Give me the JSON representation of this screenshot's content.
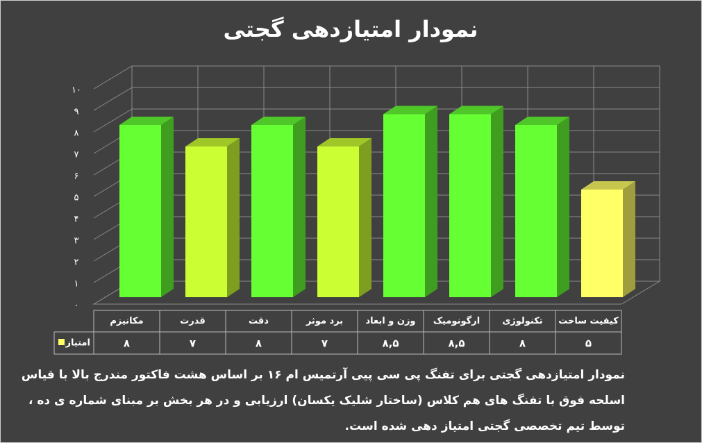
{
  "chart_data": {
    "type": "bar3d",
    "title": "نمودار امتیازدهی گجتی",
    "categories": [
      "مکانیزم",
      "قدرت",
      "دقت",
      "برد موثر",
      "وزن و ابعاد",
      "ارگونومیک",
      "تکنولوژی",
      "کیفیت ساخت"
    ],
    "series": [
      {
        "name": "امتیاز",
        "color": "#ffff66",
        "values": [
          8,
          7,
          8,
          7,
          8.5,
          8.5,
          8,
          5
        ],
        "value_labels": [
          "۸",
          "۷",
          "۸",
          "۷",
          "۸,۵",
          "۸,۵",
          "۸",
          "۵"
        ],
        "colors": [
          "#66ff33",
          "#ccff33",
          "#66ff33",
          "#ccff33",
          "#66ff33",
          "#66ff33",
          "#66ff33",
          "#ffff66"
        ]
      }
    ],
    "ylim": [
      0,
      10
    ],
    "yticks": [
      {
        "value": 0,
        "label": "۰"
      },
      {
        "value": 1,
        "label": "۱"
      },
      {
        "value": 2,
        "label": "۲"
      },
      {
        "value": 3,
        "label": "۳"
      },
      {
        "value": 4,
        "label": "۴"
      },
      {
        "value": 5,
        "label": "۵"
      },
      {
        "value": 6,
        "label": "۶"
      },
      {
        "value": 7,
        "label": "۷"
      },
      {
        "value": 8,
        "label": "۸"
      },
      {
        "value": 9,
        "label": "۹"
      },
      {
        "value": 10,
        "label": "۱۰"
      }
    ],
    "grid": true,
    "caption": [
      "نمودار امتیازدهی گجتی برای تفنگ پی سی پیی آرتمیس ام ۱۶ بر اساس هشت فاکتور مندرج بالا با قیاس",
      "اسلحه فوق با تفنگ های هم کلاس (ساختار شلیک یکسان) ارزیابی و در هر بخش بر مبنای شماره ی ده ،",
      "توسط تیم تخصصی گجتی امتیاز دهی شده است."
    ]
  }
}
